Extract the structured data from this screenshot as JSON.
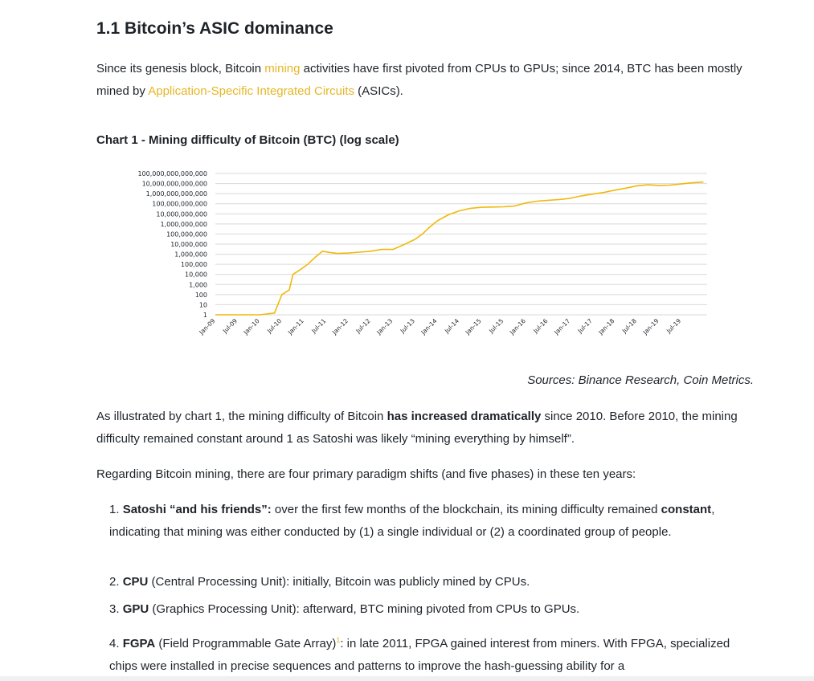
{
  "section": {
    "title": "1.1 Bitcoin’s ASIC dominance"
  },
  "intro": {
    "t1": "Since its genesis block, Bitcoin ",
    "link1": "mining",
    "t2": " activities have first pivoted from CPUs to GPUs; since 2014, BTC has been mostly mined by ",
    "link2": "Application-Specific Integrated Circuits",
    "t3": " (ASICs)."
  },
  "chart_title": "Chart 1 - Mining difficulty of Bitcoin (BTC) (log scale)",
  "chart_data": {
    "type": "line",
    "title": "Chart 1 - Mining difficulty of Bitcoin (BTC) (log scale)",
    "xlabel": "",
    "ylabel": "",
    "y_scale": "log",
    "grid": true,
    "color": "#f0b90b",
    "y_ticks": [
      "100,000,000,000,000",
      "10,000,000,000,000",
      "1,000,000,000,000",
      "100,000,000,000",
      "10,000,000,000",
      "1,000,000,000",
      "100,000,000",
      "10,000,000",
      "1,000,000",
      "100,000",
      "10,000",
      "1,000",
      "100",
      "10",
      "1"
    ],
    "x_ticks": [
      "Jan-09",
      "Jul-09",
      "Jan-10",
      "Jul-10",
      "Jan-11",
      "Jul-11",
      "Jan-12",
      "Jul-12",
      "Jan-13",
      "Jul-13",
      "Jan-14",
      "Jul-14",
      "Jan-15",
      "Jul-15",
      "Jan-16",
      "Jul-16",
      "Jan-17",
      "Jul-17",
      "Jan-18",
      "Jul-18",
      "Jan-19",
      "Jul-19"
    ],
    "series": [
      {
        "x": [
          "2009-01",
          "2009-07",
          "2010-01",
          "2010-05",
          "2010-07",
          "2010-09",
          "2010-10",
          "2010-12",
          "2011-02",
          "2011-04",
          "2011-06",
          "2011-08",
          "2011-10",
          "2012-01",
          "2012-04",
          "2012-07",
          "2012-10",
          "2013-01",
          "2013-04",
          "2013-07",
          "2013-09",
          "2013-11",
          "2014-01",
          "2014-04",
          "2014-07",
          "2014-10",
          "2015-01",
          "2015-04",
          "2015-07",
          "2015-10",
          "2016-01",
          "2016-04",
          "2016-07",
          "2016-10",
          "2017-01",
          "2017-04",
          "2017-07",
          "2017-10",
          "2018-01",
          "2018-04",
          "2018-07",
          "2018-10",
          "2019-01",
          "2019-04",
          "2019-07",
          "2019-10",
          "2020-01"
        ],
        "values": [
          1,
          1,
          1,
          1.5,
          100,
          300,
          10000,
          30000,
          100000,
          500000,
          2000000,
          1500000,
          1200000,
          1300000,
          1600000,
          2000000,
          3000000,
          3000000,
          9000000,
          30000000,
          100000000,
          500000000,
          2000000000,
          8000000000,
          20000000000,
          35000000000,
          45000000000,
          47000000000,
          50000000000,
          60000000000,
          120000000000,
          180000000000,
          220000000000,
          260000000000,
          350000000000,
          600000000000,
          900000000000,
          1300000000000,
          2200000000000,
          3500000000000,
          6000000000000,
          7500000000000,
          6500000000000,
          7000000000000,
          9000000000000,
          12000000000000,
          14000000000000
        ]
      }
    ]
  },
  "sources": "Sources: Binance Research, Coin Metrics.",
  "para2": {
    "t1": "As illustrated by chart 1, the mining difficulty of Bitcoin ",
    "b1": "has increased dramatically",
    "t2": " since 2010. Before 2010, the mining difficulty remained constant around 1 as Satoshi was likely “mining everything by himself”."
  },
  "para3": "Regarding Bitcoin mining, there are four primary paradigm shifts (and five phases) in these ten years:",
  "list": [
    {
      "num": "1. ",
      "bold": "Satoshi “and his friends”:",
      "t1": " over the first few months of the blockchain, its mining difficulty remained ",
      "bold2": "constant",
      "t2": ", indicating that mining was either conducted by (1) a single individual or (2) a coordinated group of people."
    },
    {
      "num": "2. ",
      "bold": "CPU",
      "t1": " (Central Processing Unit): initially, Bitcoin was publicly mined by CPUs."
    },
    {
      "num": "3. ",
      "bold": "GPU",
      "t1": " (Graphics Processing Unit): afterward, BTC mining pivoted from CPUs to GPUs."
    },
    {
      "num": "4. ",
      "bold": "FGPA",
      "t1": " (Field Programmable Gate Array)",
      "sup": "1",
      "t2": ": in late 2011, FPGA gained interest from miners. With FPGA, specialized chips were installed in precise sequences and patterns to improve the hash-guessing ability for a"
    }
  ]
}
